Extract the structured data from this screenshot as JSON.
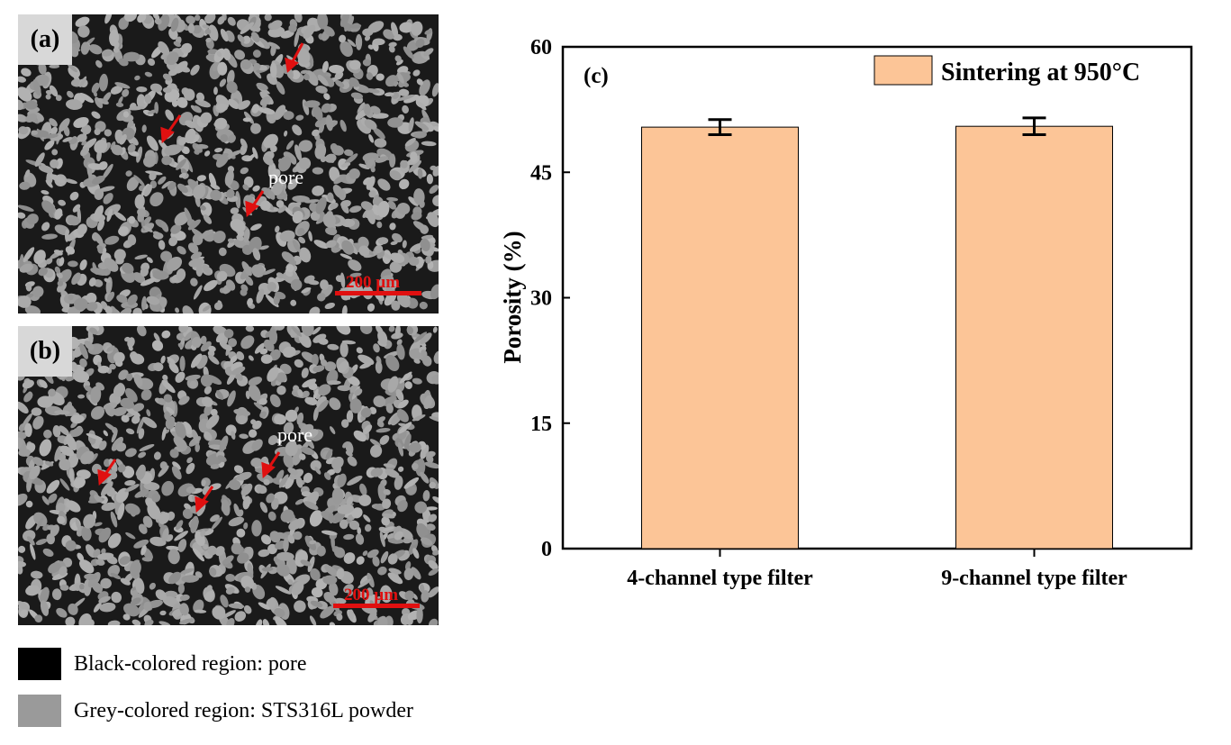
{
  "panels": [
    {
      "letter": "(a)",
      "annotation": "pore",
      "scale_bar": "200 µm"
    },
    {
      "letter": "(b)",
      "annotation": "pore",
      "scale_bar": "200 µm"
    }
  ],
  "legend": [
    {
      "color": "#000000",
      "label": "Black-colored region: pore"
    },
    {
      "color": "#9a9a9a",
      "label": "Grey-colored region: STS316L powder"
    }
  ],
  "colors": {
    "bar": "#fcc597",
    "arrow": "#e01010",
    "scale_bar": "#e01010"
  },
  "chart_data": {
    "type": "bar",
    "panel_label": "(c)",
    "categories": [
      "4-channel type filter",
      "9-channel type filter"
    ],
    "series": [
      {
        "name": "Sintering at 950°C",
        "values": [
          50.4,
          50.5
        ],
        "errors": [
          0.9,
          1.0
        ]
      }
    ],
    "ylabel": "Porosity (%)",
    "xlabel": "",
    "ylim": [
      0,
      60
    ],
    "yticks": [
      "0",
      "15",
      "30",
      "45",
      "60"
    ],
    "legend_position": "top-right",
    "grid": false
  }
}
